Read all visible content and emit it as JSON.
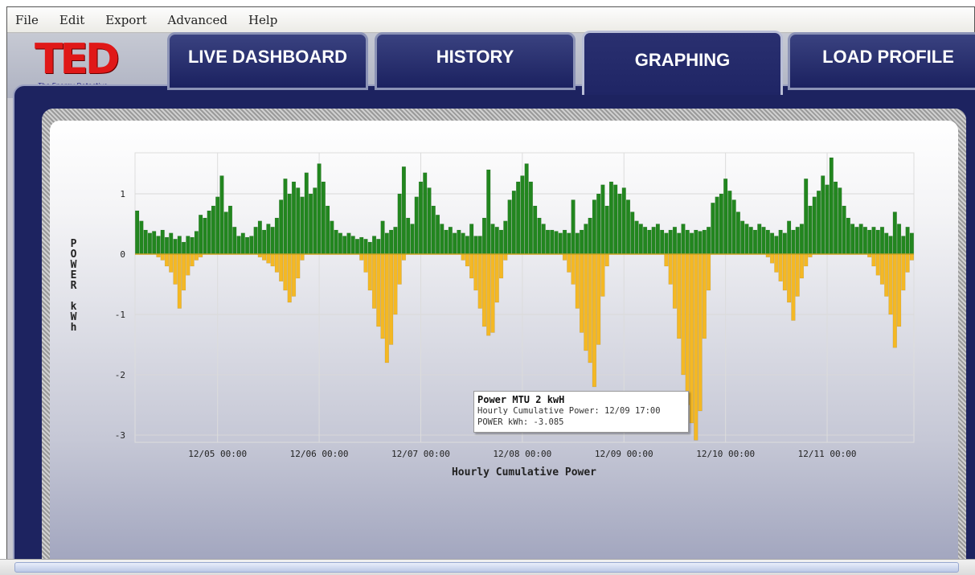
{
  "menu": [
    "File",
    "Edit",
    "Export",
    "Advanced",
    "Help"
  ],
  "logo": {
    "title": "TED",
    "tagline": "The Energy Detective"
  },
  "tabs": [
    "LIVE DASHBOARD",
    "HISTORY",
    "GRAPHING",
    "LOAD PROFILE"
  ],
  "active_tab": 2,
  "chart_data": {
    "type": "bar",
    "x_label": "Hourly Cumulative Power",
    "y_label": "POWER kWh",
    "categories": [
      null,
      null,
      null,
      null,
      null,
      null,
      null,
      null,
      null,
      null,
      null,
      null,
      null,
      null,
      null,
      null,
      null,
      null,
      null,
      "12/05 00:00",
      null,
      null,
      null,
      null,
      null,
      null,
      null,
      null,
      null,
      null,
      null,
      null,
      null,
      null,
      null,
      null,
      null,
      null,
      null,
      null,
      null,
      null,
      null,
      "12/06 00:00",
      null,
      null,
      null,
      null,
      null,
      null,
      null,
      null,
      null,
      null,
      null,
      null,
      null,
      null,
      null,
      null,
      null,
      null,
      null,
      null,
      null,
      null,
      null,
      "12/07 00:00",
      null,
      null,
      null,
      null,
      null,
      null,
      null,
      null,
      null,
      null,
      null,
      null,
      null,
      null,
      null,
      null,
      null,
      null,
      null,
      null,
      null,
      null,
      null,
      "12/08 00:00",
      null,
      null,
      null,
      null,
      null,
      null,
      null,
      null,
      null,
      null,
      null,
      null,
      null,
      null,
      null,
      null,
      null,
      null,
      null,
      null,
      null,
      null,
      null,
      "12/09 00:00",
      null,
      null,
      null,
      null,
      null,
      null,
      null,
      null,
      null,
      null,
      null,
      null,
      null,
      null,
      null,
      null,
      null,
      null,
      null,
      null,
      null,
      null,
      null,
      "12/10 00:00",
      null,
      null,
      null,
      null,
      null,
      null,
      null,
      null,
      null,
      null,
      null,
      null,
      null,
      null,
      null,
      null,
      null,
      null,
      null,
      null,
      null,
      null,
      null,
      "12/11 00:00",
      null,
      null,
      null,
      null,
      null,
      null,
      null,
      null,
      null,
      null,
      null,
      null,
      null,
      null,
      null,
      null,
      null,
      null,
      null,
      null
    ],
    "series": [
      {
        "color": "#22861f",
        "values": [
          0.72,
          0.55,
          0.4,
          0.35,
          0.38,
          0.3,
          0.4,
          0.28,
          0.35,
          0.25,
          0.3,
          0.2,
          0.3,
          0.28,
          0.38,
          0.65,
          0.6,
          0.72,
          0.8,
          0.95,
          1.3,
          0.7,
          0.8,
          0.45,
          0.3,
          0.35,
          0.28,
          0.3,
          0.45,
          0.55,
          0.4,
          0.5,
          0.45,
          0.6,
          0.9,
          1.25,
          1.0,
          1.2,
          1.1,
          0.95,
          1.35,
          1.0,
          1.1,
          1.5,
          1.2,
          0.8,
          0.55,
          0.4,
          0.35,
          0.3,
          0.35,
          0.3,
          0.25,
          0.28,
          0.25,
          0.2,
          0.3,
          0.25,
          0.55,
          0.35,
          0.4,
          0.45,
          1.0,
          1.45,
          0.6,
          0.5,
          0.95,
          1.2,
          1.35,
          1.1,
          0.8,
          0.65,
          0.5,
          0.4,
          0.45,
          0.35,
          0.4,
          0.35,
          0.3,
          0.5,
          0.3,
          0.3,
          0.6,
          1.4,
          0.5,
          0.45,
          0.4,
          0.55,
          0.9,
          1.05,
          1.2,
          1.3,
          1.5,
          1.2,
          0.8,
          0.6,
          0.5,
          0.4,
          0.4,
          0.38,
          0.35,
          0.4,
          0.35,
          0.9,
          0.35,
          0.4,
          0.5,
          0.6,
          0.9,
          1.0,
          1.15,
          0.8,
          1.2,
          1.15,
          1.0,
          1.1,
          0.9,
          0.7,
          0.55,
          0.5,
          0.45,
          0.4,
          0.45,
          0.5,
          0.4,
          0.35,
          0.4,
          0.45,
          0.35,
          0.5,
          0.4,
          0.35,
          0.4,
          0.38,
          0.4,
          0.45,
          0.85,
          0.95,
          1.0,
          1.25,
          1.05,
          0.9,
          0.7,
          0.55,
          0.5,
          0.45,
          0.4,
          0.5,
          0.45,
          0.4,
          0.35,
          0.3,
          0.4,
          0.35,
          0.55,
          0.4,
          0.45,
          0.5,
          1.25,
          0.8,
          0.95,
          1.05,
          1.3,
          1.15,
          1.6,
          1.2,
          1.1,
          0.8,
          0.6,
          0.5,
          0.45,
          0.5,
          0.45,
          0.4,
          0.45,
          0.4,
          0.45,
          0.35,
          0.3,
          0.7,
          0.5,
          0.3,
          0.45,
          0.35
        ]
      },
      {
        "color": "#f4b824",
        "values": [
          0,
          0,
          0,
          0,
          0,
          -0.05,
          -0.1,
          -0.2,
          -0.3,
          -0.5,
          -0.9,
          -0.6,
          -0.35,
          -0.2,
          -0.1,
          -0.05,
          0,
          0,
          0,
          0,
          0,
          0,
          0,
          0,
          0,
          0,
          0,
          0,
          0,
          -0.05,
          -0.1,
          -0.15,
          -0.2,
          -0.3,
          -0.45,
          -0.6,
          -0.8,
          -0.7,
          -0.4,
          -0.1,
          0,
          0,
          0,
          0,
          0,
          0,
          0,
          0,
          0,
          0,
          0,
          0,
          0,
          -0.1,
          -0.3,
          -0.6,
          -0.9,
          -1.2,
          -1.4,
          -1.8,
          -1.5,
          -1.0,
          -0.5,
          -0.1,
          0,
          0,
          0,
          0,
          0,
          0,
          0,
          0,
          0,
          0,
          0,
          0,
          0,
          -0.1,
          -0.2,
          -0.4,
          -0.6,
          -0.9,
          -1.2,
          -1.35,
          -1.3,
          -0.8,
          -0.4,
          -0.1,
          0,
          0,
          0,
          0,
          0,
          0,
          0,
          0,
          0,
          0,
          0,
          0,
          0,
          -0.1,
          -0.3,
          -0.5,
          -0.9,
          -1.3,
          -1.6,
          -1.8,
          -2.2,
          -1.5,
          -0.7,
          -0.2,
          0,
          0,
          0,
          0,
          0,
          0,
          0,
          0,
          0,
          0,
          0,
          0,
          0,
          -0.2,
          -0.5,
          -0.9,
          -1.4,
          -2.0,
          -2.5,
          -2.8,
          -3.085,
          -2.6,
          -1.4,
          -0.6,
          0,
          0,
          0,
          0,
          0,
          0,
          0,
          0,
          0,
          0,
          0,
          0,
          0,
          -0.05,
          -0.15,
          -0.3,
          -0.45,
          -0.6,
          -0.8,
          -1.1,
          -0.7,
          -0.4,
          -0.2,
          -0.05,
          0,
          0,
          0,
          0,
          0,
          0,
          0,
          0,
          0,
          0,
          0,
          0,
          0,
          -0.05,
          -0.2,
          -0.35,
          -0.5,
          -0.7,
          -1.0,
          -1.55,
          -1.2,
          -0.6,
          -0.3,
          -0.1
        ]
      }
    ],
    "ylim": [
      -3.12,
      1.68
    ],
    "yticks": [
      -3,
      -2,
      -1,
      0,
      1
    ],
    "grid": true,
    "tooltip": {
      "title": "Power MTU 2 kwH",
      "time": "Hourly Cumulative Power: 12/09 17:00",
      "value": "POWER kWh: -3.085"
    }
  }
}
